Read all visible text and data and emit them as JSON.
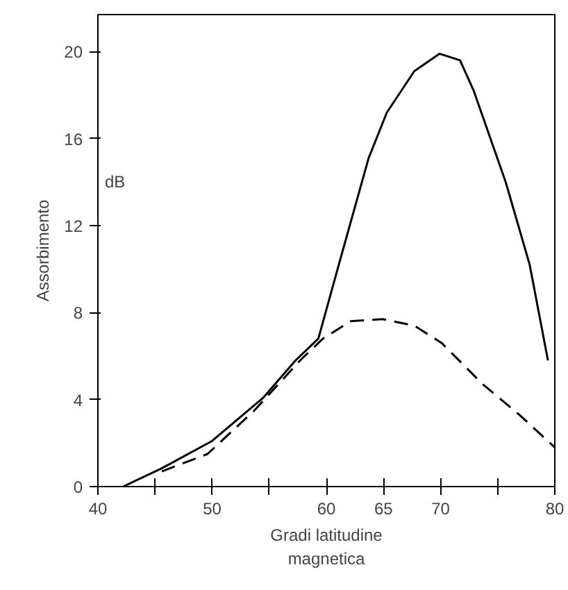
{
  "chart_data": {
    "type": "line",
    "xlabel": "Gradi latitudine\nmagnetica",
    "ylabel": "Assorbimento",
    "annotations": [
      "dB"
    ],
    "xlim": [
      40,
      80
    ],
    "ylim": [
      0,
      21.7
    ],
    "xticks": [
      40,
      {
        "value": 45,
        "label": null
      },
      50,
      {
        "value": 55,
        "label": null
      },
      60,
      65,
      70,
      {
        "value": 75,
        "label": null
      },
      80
    ],
    "yticks": [
      0,
      4,
      8,
      12,
      16,
      20
    ],
    "grid": false,
    "series": [
      {
        "color": "#000000",
        "line_style": "solid",
        "x": [
          42.2,
          45.6,
          50,
          54.5,
          57.3,
          59.3,
          61.3,
          63.7,
          65.3,
          67.7,
          69.9,
          71.7,
          72.9,
          75.7,
          77.8,
          79.4
        ],
        "values": [
          0,
          0.84,
          2.1,
          4.1,
          5.8,
          6.8,
          10.6,
          15.1,
          17.2,
          19.1,
          19.9,
          19.6,
          18.2,
          14,
          10.2,
          5.8
        ]
      },
      {
        "color": "#000000",
        "line_style": "dashed",
        "x": [
          45.6,
          49.6,
          53.7,
          57.7,
          59.7,
          62.1,
          64.9,
          67.7,
          70.1,
          73.7,
          76.9,
          80
        ],
        "values": [
          0.7,
          1.5,
          3.5,
          5.8,
          6.8,
          7.6,
          7.7,
          7.4,
          6.6,
          4.7,
          3.3,
          1.8
        ]
      }
    ]
  }
}
